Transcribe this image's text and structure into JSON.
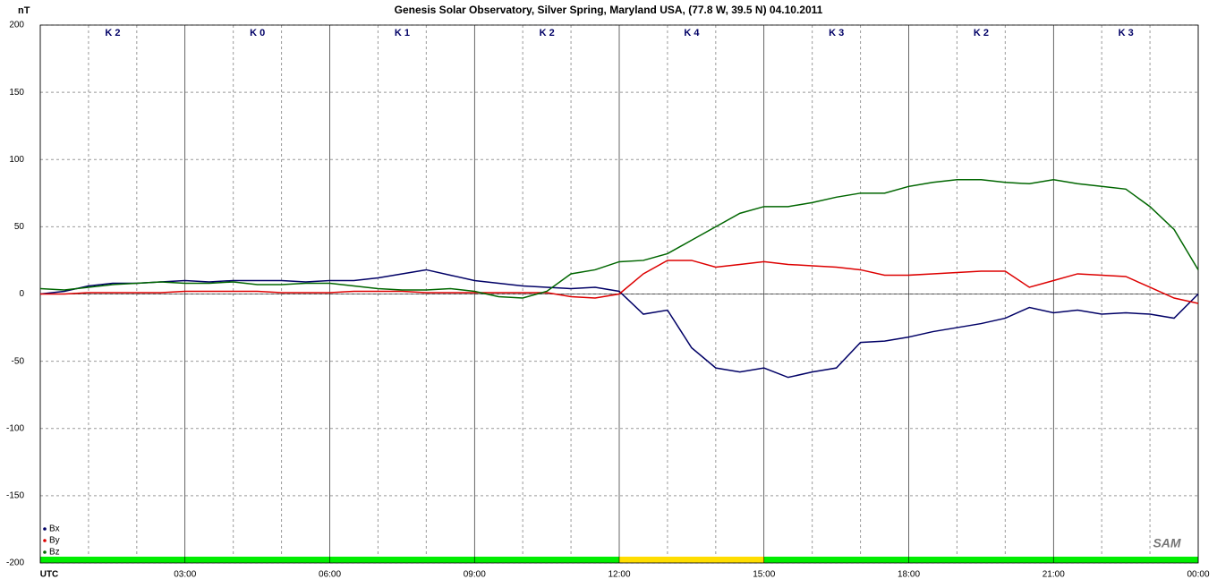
{
  "chart_data": {
    "type": "line",
    "title": "Genesis Solar Observatory, Silver Spring, Maryland USA, (77.8 W, 39.5 N)  04.10.2011",
    "y_label": "nT",
    "logo": "SAM",
    "x": [
      0,
      0.5,
      1,
      1.5,
      2,
      2.5,
      3,
      3.5,
      4,
      4.5,
      5,
      5.5,
      6,
      6.5,
      7,
      7.5,
      8,
      8.5,
      9,
      9.5,
      10,
      10.5,
      11,
      11.5,
      12,
      12.5,
      13,
      13.5,
      14,
      14.5,
      15,
      15.5,
      16,
      16.5,
      17,
      17.5,
      18,
      18.5,
      19,
      19.5,
      20,
      20.5,
      21,
      21.5,
      22,
      22.5,
      23,
      23.5,
      24
    ],
    "series": [
      {
        "name": "Bx",
        "color": "#000066",
        "values": [
          0,
          2,
          6,
          8,
          8,
          9,
          10,
          9,
          10,
          10,
          10,
          9,
          10,
          10,
          12,
          15,
          18,
          14,
          10,
          8,
          6,
          5,
          4,
          5,
          2,
          -15,
          -12,
          -40,
          -55,
          -58,
          -55,
          -62,
          -58,
          -55,
          -36,
          -35,
          -32,
          -28,
          -25,
          -22,
          -18,
          -10,
          -14,
          -12,
          -15,
          -14,
          -15,
          -18,
          0
        ]
      },
      {
        "name": "By",
        "color": "#dd0000",
        "values": [
          0,
          0,
          1,
          1,
          1,
          1,
          2,
          2,
          2,
          2,
          1,
          1,
          1,
          2,
          2,
          2,
          1,
          1,
          1,
          1,
          1,
          1,
          -2,
          -3,
          0,
          15,
          25,
          25,
          20,
          22,
          24,
          22,
          21,
          20,
          18,
          14,
          14,
          15,
          16,
          17,
          17,
          5,
          10,
          15,
          14,
          13,
          5,
          -3,
          -7
        ]
      },
      {
        "name": "Bz",
        "color": "#006600",
        "values": [
          4,
          3,
          5,
          7,
          8,
          9,
          8,
          8,
          9,
          7,
          7,
          8,
          8,
          6,
          4,
          3,
          3,
          4,
          2,
          -2,
          -3,
          2,
          15,
          18,
          24,
          25,
          30,
          40,
          50,
          60,
          65,
          65,
          68,
          72,
          75,
          75,
          80,
          83,
          85,
          85,
          83,
          82,
          85,
          82,
          80,
          78,
          65,
          48,
          18
        ]
      }
    ],
    "xlim": [
      0,
      24
    ],
    "xticks": [
      {
        "value": 0,
        "label": "UTC"
      },
      {
        "value": 3,
        "label": "03:00"
      },
      {
        "value": 6,
        "label": "06:00"
      },
      {
        "value": 9,
        "label": "09:00"
      },
      {
        "value": 12,
        "label": "12:00"
      },
      {
        "value": 15,
        "label": "15:00"
      },
      {
        "value": 18,
        "label": "18:00"
      },
      {
        "value": 21,
        "label": "21:00"
      },
      {
        "value": 24,
        "label": "00:00"
      }
    ],
    "minor_xticks": [
      1,
      2,
      4,
      5,
      7,
      8,
      10,
      11,
      13,
      14,
      16,
      17,
      19,
      20,
      22,
      23
    ],
    "ylim": [
      -200,
      200
    ],
    "yticks": [
      -200,
      -150,
      -100,
      -50,
      0,
      50,
      100,
      150,
      200
    ],
    "k_labels": [
      "K 2",
      "K 0",
      "K 1",
      "K 2",
      "K 4",
      "K 3",
      "K 2",
      "K 3"
    ],
    "k_bar_colors": [
      "#00ee00",
      "#00ee00",
      "#00ee00",
      "#00ee00",
      "#ffdd00",
      "#00ee00",
      "#00ee00",
      "#00ee00"
    ],
    "legend": "lower left",
    "grid": true
  }
}
